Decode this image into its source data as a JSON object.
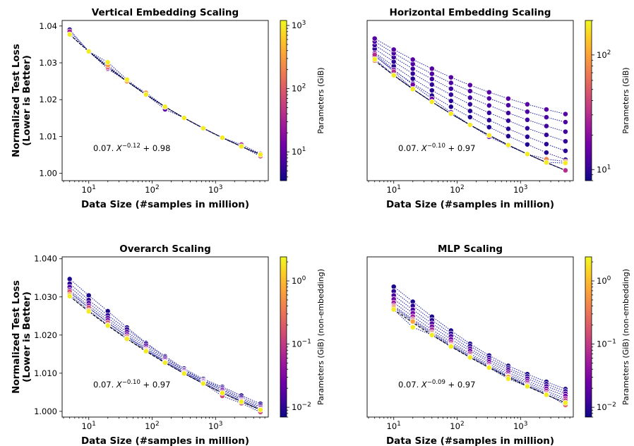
{
  "colors": {
    "colormap": [
      "#0d0887",
      "#46039f",
      "#7201a8",
      "#9c179e",
      "#bd3786",
      "#d8576b",
      "#ed7953",
      "#fb9f3a",
      "#fdca26",
      "#f0f921"
    ],
    "fit_line": "#000000",
    "series_line": "#1a1aa0"
  },
  "chart_data": [
    {
      "type": "scatter",
      "title": "Vertical Embedding Scaling",
      "xlabel": "Data Size (#samples in million)",
      "ylabel": "Normalized Test Loss\n(Lower is Better)",
      "xscale": "log",
      "xlim": [
        3.8,
        6800
      ],
      "ylim": [
        0.998,
        1.0415
      ],
      "yticks": [
        1.0,
        1.01,
        1.02,
        1.03,
        1.04
      ],
      "ytick_labels": [
        "1.00",
        "1.01",
        "1.02",
        "1.03",
        "1.04"
      ],
      "xticks": [
        10,
        100,
        1000
      ],
      "xtick_labels": [
        "10^1",
        "10^2",
        "10^3"
      ],
      "x": [
        5,
        10,
        20,
        40,
        80,
        160,
        320,
        640,
        1280,
        2560,
        5120
      ],
      "fit": {
        "label": "0.07.X^-0.12 + 0.98",
        "a": 0.07,
        "b": -0.12,
        "c": 0.98,
        "yoffset": 0.0
      },
      "series": [
        {
          "param": 4,
          "offsets": [
            0.0013,
            0.0,
            0.0,
            0.0,
            0.0,
            0.0,
            0.0,
            0.0,
            0.0,
            0.0,
            0.0
          ]
        },
        {
          "param": 10,
          "offsets": [
            0.0,
            0.0,
            -0.0005,
            0.0,
            0.0,
            -0.0007,
            0.0,
            0.0,
            0.0,
            0.0,
            0.0
          ]
        },
        {
          "param": 30,
          "offsets": [
            0.0008,
            0.0,
            -0.0003,
            0.0,
            0.0,
            0.0,
            0.0,
            0.0,
            0.0,
            0.0005,
            0.0002
          ]
        },
        {
          "param": 100,
          "offsets": [
            0.0,
            0.0,
            0.0,
            0.0,
            0.0,
            0.0,
            0.0,
            0.0,
            0.0,
            0.0,
            -0.0005
          ]
        },
        {
          "param": 300,
          "offsets": [
            0.0,
            0.0,
            0.0005,
            0.0,
            0.0005,
            0.0,
            0.0,
            0.0,
            0.0,
            0.0,
            0.0
          ]
        },
        {
          "param": 1000,
          "offsets": [
            0.0,
            0.0,
            0.0013,
            0.0005,
            0.0,
            0.0,
            0.0,
            0.0,
            0.0,
            0.0,
            0.0
          ]
        }
      ],
      "colorbar": {
        "label": "Parameters (GiB)",
        "min": 3.5,
        "max": 1200,
        "ticks": [
          10,
          100,
          1000
        ],
        "tick_labels": [
          "10^1",
          "10^2",
          "10^3"
        ]
      }
    },
    {
      "type": "scatter",
      "title": "Horizontal Embedding Scaling",
      "xlabel": "Data Size (#samples in million)",
      "ylabel": "",
      "xscale": "log",
      "xlim": [
        3.8,
        6800
      ],
      "ylim": [
        0.998,
        1.0415
      ],
      "yticks": [],
      "ytick_labels": [],
      "xticks": [
        10,
        100,
        1000
      ],
      "xtick_labels": [
        "10^1",
        "10^2",
        "10^3"
      ],
      "x": [
        5,
        10,
        20,
        40,
        80,
        160,
        320,
        640,
        1280,
        2560,
        5120
      ],
      "fit": {
        "label": "0.07.X^-0.10 + 0.97",
        "a": 0.07,
        "b": -0.1,
        "c": 0.97,
        "yoffset": 0.001
      },
      "series": [
        {
          "param": 8.5,
          "offsets": [
            0.0004,
            0.0001,
            0.0,
            0.0,
            0.0,
            0.0,
            0.0,
            0.0,
            0.0,
            0.0,
            0.0
          ]
        },
        {
          "param": 9.0,
          "offsets": [
            0.0012,
            0.0013,
            0.0015,
            0.0017,
            0.0019,
            0.0021,
            0.0022,
            0.0024,
            0.0026,
            0.0027,
            0.0029
          ]
        },
        {
          "param": 9.5,
          "offsets": [
            0.0022,
            0.0025,
            0.0028,
            0.0031,
            0.0035,
            0.0038,
            0.0041,
            0.0044,
            0.0047,
            0.005,
            0.0053
          ]
        },
        {
          "param": 10,
          "offsets": [
            0.0032,
            0.0037,
            0.0042,
            0.0047,
            0.0052,
            0.0056,
            0.0061,
            0.0066,
            0.007,
            0.0075,
            0.0079
          ]
        },
        {
          "param": 11,
          "offsets": [
            0.0042,
            0.0049,
            0.0055,
            0.0062,
            0.0068,
            0.0074,
            0.0081,
            0.0087,
            0.0093,
            0.0099,
            0.0105
          ]
        },
        {
          "param": 12,
          "offsets": [
            0.0052,
            0.006,
            0.0068,
            0.0076,
            0.0084,
            0.0092,
            0.01,
            0.0108,
            0.0115,
            0.0123,
            0.0131
          ]
        },
        {
          "param": 13,
          "offsets": [
            0.006,
            0.007,
            0.008,
            0.009,
            0.0099,
            0.0108,
            0.0117,
            0.0126,
            0.0135,
            0.0144,
            0.0153
          ]
        },
        {
          "param": 16,
          "offsets": [
            0.002,
            0.0015,
            0.0012,
            0.0008,
            0.0004,
            0.0,
            -0.0004,
            -0.0002,
            0.0,
            0.0,
            0.0
          ]
        },
        {
          "param": 30,
          "offsets": [
            0.0016,
            0.001,
            0.0,
            0.0,
            0.0,
            0.0,
            0.0,
            0.0,
            0.0,
            0.0,
            0.0
          ]
        },
        {
          "param": 80,
          "offsets": [
            0.0,
            0.0,
            0.0,
            0.0,
            0.0,
            0.0,
            0.0,
            0.0,
            0.0,
            0.0009,
            0.0024
          ]
        },
        {
          "param": 180,
          "offsets": [
            0.0004,
            0.0,
            0.0,
            0.0,
            0.0,
            0.0,
            0.0,
            0.0,
            0.0,
            0.0,
            0.002
          ]
        }
      ],
      "colorbar": {
        "label": "Parameters (GiB)",
        "min": 8,
        "max": 200,
        "ticks": [
          10,
          100
        ],
        "tick_labels": [
          "10^1",
          "10^2"
        ]
      }
    },
    {
      "type": "scatter",
      "title": "Overarch Scaling",
      "xlabel": "Data Size (#samples in million)",
      "ylabel": "Normalized Test Loss\n(Lower is Better)",
      "xscale": "log",
      "xlim": [
        3.8,
        6800
      ],
      "ylim": [
        0.9985,
        1.0405
      ],
      "yticks": [
        1.0,
        1.01,
        1.02,
        1.03,
        1.04
      ],
      "ytick_labels": [
        "1.000",
        "1.010",
        "1.020",
        "1.030",
        "1.040"
      ],
      "xticks": [
        10,
        100,
        1000
      ],
      "xtick_labels": [
        "10^1",
        "10^2",
        "10^3"
      ],
      "x": [
        5,
        10,
        20,
        40,
        80,
        160,
        320,
        640,
        1280,
        2560,
        5120
      ],
      "fit": {
        "label": "0.07.X^-0.10 + 0.97",
        "a": 0.07,
        "b": -0.1,
        "c": 0.97,
        "yoffset": 0.0006
      },
      "series": [
        {
          "param": 0.008,
          "offsets": [
            0.0045,
            0.0042,
            0.0038,
            0.003,
            0.0022,
            0.0017,
            0.0013,
            0.0012,
            0.0016,
            0.0016,
            0.0016
          ]
        },
        {
          "param": 0.01,
          "offsets": [
            0.0033,
            0.003,
            0.0027,
            0.0025,
            0.002,
            0.0014,
            0.001,
            0.0009,
            0.0013,
            0.0011,
            0.0012
          ]
        },
        {
          "param": 0.015,
          "offsets": [
            0.0024,
            0.0022,
            0.002,
            0.0018,
            0.0015,
            0.001,
            0.0008,
            0.0007,
            0.001,
            0.0007,
            0.0008
          ]
        },
        {
          "param": 0.025,
          "offsets": [
            0.0016,
            0.0015,
            0.0014,
            0.0012,
            0.001,
            0.0007,
            0.0005,
            0.0005,
            0.0007,
            0.0004,
            0.0005
          ]
        },
        {
          "param": 0.05,
          "offsets": [
            0.0009,
            0.0009,
            0.0008,
            0.0007,
            0.0006,
            0.0004,
            0.0003,
            0.0003,
            0.0003,
            0.0002,
            0.0002
          ]
        },
        {
          "param": 0.15,
          "offsets": [
            0.0012,
            0.001,
            0.0008,
            0.0006,
            0.0004,
            0.0002,
            0.0001,
            0.0001,
            -0.0008,
            -0.0004,
            -0.0006
          ]
        },
        {
          "param": 0.6,
          "offsets": [
            0.0004,
            0.0003,
            0.0002,
            0.0002,
            0.0002,
            0.0001,
            0.0,
            0.0,
            0.0,
            0.0,
            0.0
          ]
        },
        {
          "param": 2.0,
          "offsets": [
            0.0,
            0.0,
            0.0,
            0.0,
            0.0,
            0.0,
            0.0,
            0.0,
            0.0,
            0.0,
            0.0
          ]
        }
      ],
      "colorbar": {
        "label": "Parameters (GiB) (non-embedding)",
        "min": 0.007,
        "max": 2.4,
        "ticks": [
          0.01,
          0.1,
          1
        ],
        "tick_labels": [
          "10^-2",
          "10^-1",
          "10^0"
        ]
      }
    },
    {
      "type": "scatter",
      "title": "MLP Scaling",
      "xlabel": "Data Size (#samples in million)",
      "ylabel": "",
      "xscale": "log",
      "xlim": [
        3.8,
        6800
      ],
      "ylim": [
        0.9985,
        1.0405
      ],
      "yticks": [],
      "ytick_labels": [],
      "xticks": [
        10,
        100,
        1000
      ],
      "xtick_labels": [
        "10^1",
        "10^2",
        "10^3"
      ],
      "x": [
        10,
        20,
        40,
        80,
        160,
        320,
        640,
        1280,
        2560,
        5120
      ],
      "fit": {
        "label": "0.07.X^-0.09 + 0.97",
        "a": 0.07,
        "b": -0.09,
        "c": 0.97,
        "yoffset": -0.0002
      },
      "series": [
        {
          "param": 0.008,
          "offsets": [
            0.006,
            0.0055,
            0.0048,
            0.0042,
            0.0036,
            0.0032,
            0.003,
            0.0032,
            0.0034,
            0.0036
          ]
        },
        {
          "param": 0.01,
          "offsets": [
            0.0048,
            0.0044,
            0.0039,
            0.0034,
            0.003,
            0.0026,
            0.0024,
            0.0026,
            0.0028,
            0.003
          ]
        },
        {
          "param": 0.015,
          "offsets": [
            0.0037,
            0.0034,
            0.003,
            0.0027,
            0.0023,
            0.002,
            0.0019,
            0.002,
            0.0022,
            0.0024
          ]
        },
        {
          "param": 0.025,
          "offsets": [
            0.0027,
            0.0025,
            0.0022,
            0.0019,
            0.0017,
            0.0015,
            0.0013,
            0.0014,
            0.0016,
            0.0018
          ]
        },
        {
          "param": 0.05,
          "offsets": [
            0.0018,
            0.0016,
            0.0014,
            0.0012,
            0.001,
            0.0009,
            0.0008,
            0.0009,
            0.001,
            0.0011
          ]
        },
        {
          "param": 0.1,
          "offsets": [
            0.001,
            0.0009,
            0.0008,
            0.0007,
            0.0006,
            0.0005,
            0.0004,
            0.0005,
            0.0005,
            0.0006
          ]
        },
        {
          "param": 0.25,
          "offsets": [
            0.0007,
            0.0006,
            0.0005,
            0.0004,
            0.0003,
            0.0003,
            0.0002,
            0.0002,
            0.0002,
            -0.0006
          ]
        },
        {
          "param": 0.7,
          "offsets": [
            0.0004,
            0.0003,
            0.0002,
            0.0002,
            0.0001,
            0.0001,
            0.0001,
            0.0001,
            0.0,
            0.0
          ]
        },
        {
          "param": 2.0,
          "offsets": [
            0.0,
            -0.0012,
            0.0,
            0.0,
            0.0,
            0.0,
            -0.0004,
            0.0,
            0.0,
            0.0
          ]
        }
      ],
      "colorbar": {
        "label": "Parameters (GiB) (non-embedding)",
        "min": 0.007,
        "max": 2.4,
        "ticks": [
          0.01,
          0.1,
          1
        ],
        "tick_labels": [
          "10^-2",
          "10^-1",
          "10^0"
        ]
      }
    }
  ]
}
